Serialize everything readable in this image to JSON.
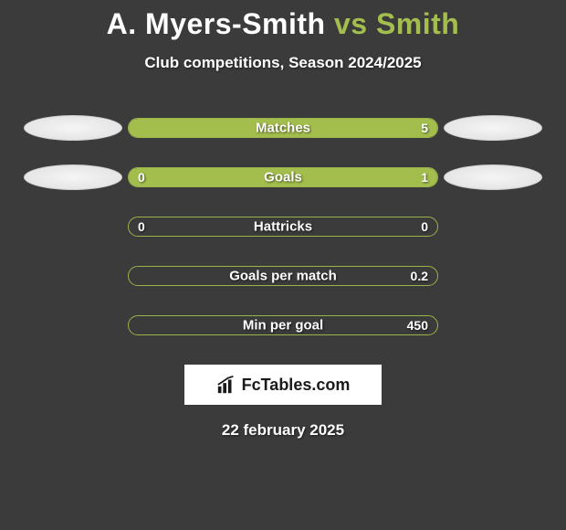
{
  "title": {
    "player1": "A. Myers-Smith",
    "vs": "vs",
    "player2": "Smith"
  },
  "subtitle": "Club competitions, Season 2024/2025",
  "colors": {
    "background": "#3b3b3b",
    "accent": "#a3be4c",
    "bar_border": "#9ab24a",
    "text": "#ffffff",
    "brand_bg": "#ffffff",
    "brand_text": "#1a1a1a"
  },
  "stats": [
    {
      "label": "Matches",
      "left_value": "",
      "right_value": "5",
      "left_pct": 0,
      "right_pct": 100,
      "show_left_avatar": true,
      "show_right_avatar": true
    },
    {
      "label": "Goals",
      "left_value": "0",
      "right_value": "1",
      "left_pct": 19,
      "right_pct": 81,
      "show_left_avatar": true,
      "show_right_avatar": true
    },
    {
      "label": "Hattricks",
      "left_value": "0",
      "right_value": "0",
      "left_pct": 0,
      "right_pct": 0,
      "show_left_avatar": false,
      "show_right_avatar": false
    },
    {
      "label": "Goals per match",
      "left_value": "",
      "right_value": "0.2",
      "left_pct": 0,
      "right_pct": 0,
      "show_left_avatar": false,
      "show_right_avatar": false
    },
    {
      "label": "Min per goal",
      "left_value": "",
      "right_value": "450",
      "left_pct": 0,
      "right_pct": 0,
      "show_left_avatar": false,
      "show_right_avatar": false
    }
  ],
  "brand": {
    "text": "FcTables.com"
  },
  "date": "22 february 2025"
}
